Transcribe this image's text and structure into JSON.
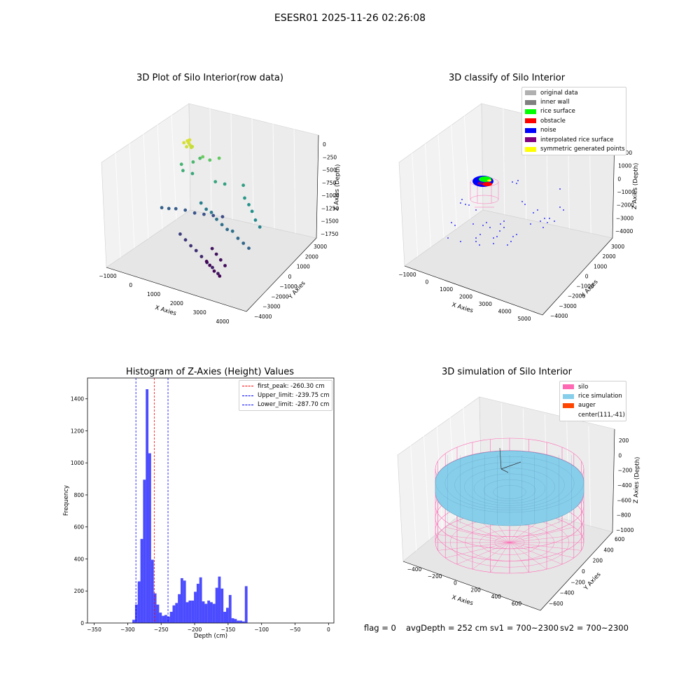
{
  "suptitle": "ESESR01 2025-11-26 02:26:08",
  "status": {
    "flag": "flag = 0",
    "avg_depth": "avgDepth = 252 cm",
    "sv1": "sv1 = 700~2300",
    "sv2": "sv2 = 700~2300"
  },
  "chart_data": [
    {
      "type": "scatter",
      "title": "3D Plot of Silo Interior(row data)",
      "xlabel": "X Axies",
      "ylabel": "Y Axies",
      "zlabel": "Z Axies (Depth)",
      "x_ticks": [
        "−1000",
        "0",
        "1000",
        "2000",
        "3000",
        "4000"
      ],
      "y_ticks": [
        "−4000",
        "−3000",
        "−2000",
        "−1000",
        "0",
        "1000",
        "2000",
        "3000"
      ],
      "z_ticks": [
        "0",
        "−250",
        "−500",
        "−750",
        "−1000",
        "−1250",
        "−1500",
        "−1750"
      ],
      "xlim": [
        -1000,
        4500
      ],
      "ylim": [
        -4300,
        3300
      ],
      "zlim": [
        -1900,
        100
      ],
      "colormap": "viridis",
      "points": [
        [
          400,
          300,
          -30
        ],
        [
          500,
          200,
          -40
        ],
        [
          300,
          400,
          -20
        ],
        [
          600,
          100,
          -60
        ],
        [
          450,
          0,
          -50
        ],
        [
          350,
          500,
          -10
        ],
        [
          550,
          300,
          -80
        ],
        [
          250,
          200,
          -30
        ],
        [
          700,
          900,
          -350
        ],
        [
          900,
          1100,
          -420
        ],
        [
          1200,
          1300,
          -380
        ],
        [
          300,
          1500,
          -520
        ],
        [
          150,
          1200,
          -560
        ],
        [
          -200,
          900,
          -600
        ],
        [
          0,
          600,
          -650
        ],
        [
          300,
          800,
          -700
        ],
        [
          1300,
          700,
          -720
        ],
        [
          1600,
          900,
          -760
        ],
        [
          2200,
          1300,
          -780
        ],
        [
          2600,
          500,
          -840
        ],
        [
          2900,
          200,
          -880
        ],
        [
          3200,
          -200,
          -900
        ],
        [
          3500,
          -600,
          -960
        ],
        [
          3800,
          -900,
          -1000
        ],
        [
          1000,
          0,
          -1050
        ],
        [
          1300,
          -200,
          -1100
        ],
        [
          1600,
          -400,
          -1090
        ],
        [
          1900,
          -600,
          -1150
        ],
        [
          2200,
          -800,
          -1180
        ],
        [
          2500,
          -1000,
          -1200
        ],
        [
          2800,
          -1200,
          -1160
        ],
        [
          3100,
          -1400,
          -1220
        ],
        [
          3400,
          -1600,
          -1240
        ],
        [
          3700,
          -1800,
          -1260
        ],
        [
          -500,
          -300,
          -1280
        ],
        [
          -300,
          -100,
          -1300
        ],
        [
          -100,
          100,
          -1310
        ],
        [
          200,
          300,
          -1330
        ],
        [
          500,
          500,
          -1380
        ],
        [
          800,
          700,
          -1400
        ],
        [
          1100,
          900,
          -1420
        ],
        [
          1400,
          1100,
          -1440
        ],
        [
          600,
          -1100,
          -1520
        ],
        [
          900,
          -1300,
          -1560
        ],
        [
          1200,
          -1500,
          -1600
        ],
        [
          1500,
          -1700,
          -1620
        ],
        [
          1800,
          -1900,
          -1660
        ],
        [
          2100,
          -2100,
          -1700
        ],
        [
          2400,
          -2300,
          -1720
        ],
        [
          2700,
          -2500,
          -1760
        ],
        [
          1600,
          -400,
          -1780
        ],
        [
          1900,
          -700,
          -1800
        ],
        [
          2200,
          -1000,
          -1820
        ],
        [
          2500,
          -1300,
          -1840
        ],
        [
          2000,
          -1600,
          -1850
        ],
        [
          2300,
          -1900,
          -1870
        ],
        [
          1700,
          -1200,
          -1880
        ],
        [
          2600,
          -2100,
          -1890
        ]
      ]
    },
    {
      "type": "scatter",
      "title": "3D classify of Silo Interior",
      "xlabel": "X Axies",
      "ylabel": "Y Axies",
      "zlabel": "Z Axies (Depth)",
      "x_ticks": [
        "−1000",
        "0",
        "1000",
        "2000",
        "3000",
        "4000",
        "5000"
      ],
      "y_ticks": [
        "−4000",
        "−3000",
        "−2000",
        "−1000",
        "0",
        "1000",
        "2000",
        "3000"
      ],
      "z_ticks": [
        "−4000",
        "−3000",
        "−2000",
        "−1000",
        "0",
        "1000",
        "2000"
      ],
      "legend": [
        {
          "label": "original data",
          "color": "#b0b0b0"
        },
        {
          "label": "inner wall",
          "color": "#808080"
        },
        {
          "label": "rice surface",
          "color": "#00ff00"
        },
        {
          "label": "obstacle",
          "color": "#ff0000"
        },
        {
          "label": "noise",
          "color": "#0000ff"
        },
        {
          "label": "interpolated rice surface",
          "color": "#800080"
        },
        {
          "label": "symmetric generated points",
          "color": "#ffff00"
        }
      ]
    },
    {
      "type": "bar",
      "title": "Histogram of Z-Axies (Height) Values",
      "xlabel": "Depth (cm)",
      "ylabel": "Frequency",
      "xlim": [
        -360,
        8
      ],
      "ylim": [
        0,
        1530
      ],
      "x_ticks": [
        -350,
        -300,
        -250,
        -200,
        -150,
        -100,
        -50,
        0
      ],
      "y_ticks": [
        0,
        200,
        400,
        600,
        800,
        1000,
        1200,
        1400
      ],
      "bin_start": -293,
      "bin_width": 4,
      "values": [
        20,
        115,
        260,
        525,
        895,
        1460,
        1060,
        395,
        185,
        115,
        65,
        45,
        50,
        40,
        70,
        110,
        125,
        180,
        280,
        265,
        130,
        140,
        140,
        195,
        245,
        285,
        135,
        120,
        140,
        130,
        120,
        220,
        290,
        215,
        70,
        95,
        175,
        30,
        25,
        15,
        15,
        10,
        230
      ],
      "bar_color": "#0000ff",
      "vlines": [
        {
          "x": -260.3,
          "color": "#ff0000",
          "label": "first_peak: -260.30 cm"
        },
        {
          "x": -239.75,
          "color": "#0000ff",
          "label": "Upper_limit: -239.75 cm"
        },
        {
          "x": -287.7,
          "color": "#0000ff",
          "label": "Lower_limit: -287.70 cm"
        }
      ]
    },
    {
      "type": "scatter",
      "title": "3D simulation of Silo Interior",
      "xlabel": "X Axies",
      "ylabel": "Y Axies",
      "zlabel": "Z Axies (Depth)",
      "x_ticks": [
        "−400",
        "−200",
        "0",
        "200",
        "400",
        "600"
      ],
      "y_ticks": [
        "−600",
        "−400",
        "−200",
        "0",
        "200",
        "400",
        "600"
      ],
      "z_ticks": [
        "−1000",
        "−800",
        "−600",
        "−400",
        "−200",
        "0",
        "200"
      ],
      "legend": [
        {
          "label": "silo",
          "color": "#ff69b4"
        },
        {
          "label": "rice simulation",
          "color": "#87ceeb"
        },
        {
          "label": "auger",
          "color": "#ff4500"
        },
        {
          "label": "center(111,-41)",
          "color": ""
        }
      ]
    }
  ]
}
